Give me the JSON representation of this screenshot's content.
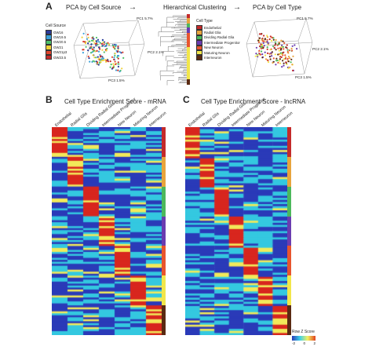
{
  "panelA": {
    "letter": "A",
    "pca_source_title": "PCA by Cell Source",
    "clustering_title": "Hierarchical Clustering",
    "pca_type_title": "PCA by Cell Type",
    "arrow": "→",
    "pc1_label": "PC1 5.7%",
    "pc2_label": "PC2 2.1%",
    "pc3_label": "PC3 1.5%",
    "cell_source_legend": {
      "title": "Cell Source",
      "items": [
        {
          "label": "GW16",
          "color": "#2a3a9a"
        },
        {
          "label": "GW19.5",
          "color": "#3aa0d8"
        },
        {
          "label": "GW20.5",
          "color": "#4cc06a"
        },
        {
          "label": "GW21",
          "color": "#f0d13a"
        },
        {
          "label": "GW21p3",
          "color": "#e0452c"
        },
        {
          "label": "GW23.5",
          "color": "#c52a2a"
        }
      ]
    },
    "cell_type_legend": {
      "title": "Cell Type",
      "items": [
        {
          "label": "Endothelial",
          "color": "#c42a2a"
        },
        {
          "label": "Radial Glia",
          "color": "#e8a43c"
        },
        {
          "label": "Dividing Radial Glia",
          "color": "#4cb85c"
        },
        {
          "label": "Intermediate Progenitor",
          "color": "#6a3cb0"
        },
        {
          "label": "New Neuron",
          "color": "#e8552e"
        },
        {
          "label": "Maturing Neuron",
          "color": "#f2e64a"
        },
        {
          "label": "Interneuron",
          "color": "#5a2a12"
        }
      ]
    }
  },
  "panelB": {
    "letter": "B",
    "title": "Cell Type Enrichment Score - mRNA",
    "columns": [
      "Endothelial",
      "Radial Glia",
      "Dividing Radial Glia",
      "Intermediate Progenitor",
      "New Neuron",
      "Maturing Neuron",
      "Interneuron"
    ]
  },
  "panelC": {
    "letter": "C",
    "title": "Cell Type Enrichment Score - lncRNA",
    "columns": [
      "Endothelial",
      "Radial Glia",
      "Dividing Radial Glia",
      "Intermediate Progenitor",
      "New Neuron",
      "Maturing Neuron",
      "Interneuron"
    ]
  },
  "colorbar": {
    "title": "Row Z Score",
    "ticks": [
      "-2",
      "0",
      "2"
    ],
    "colors": [
      "#2a3ab8",
      "#3ad0e8",
      "#f4f060",
      "#e04020"
    ]
  },
  "heatmap_colors": {
    "low": "#2a3ab8",
    "mid_low": "#34c8e0",
    "mid": "#f2ea5a",
    "high": "#d8261e"
  }
}
